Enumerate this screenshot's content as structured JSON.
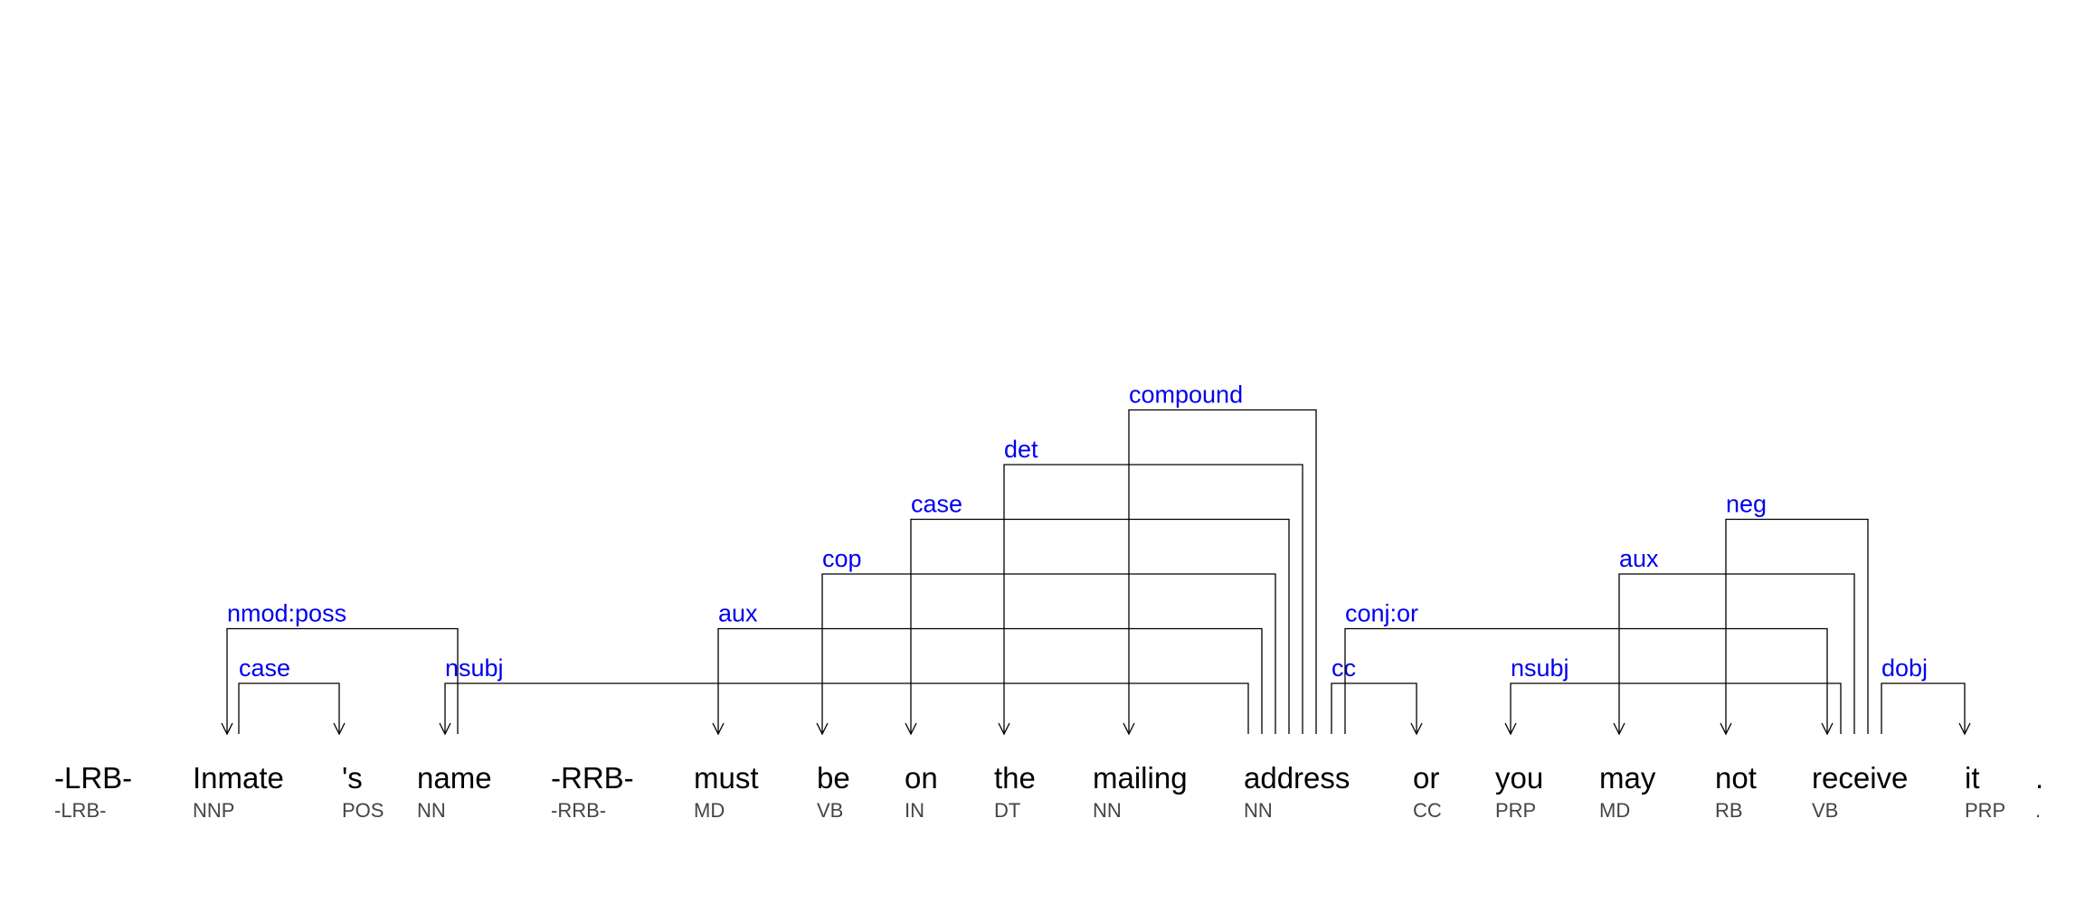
{
  "tokens": [
    {
      "word": "-LRB-",
      "tag": "-LRB-"
    },
    {
      "word": "Inmate",
      "tag": "NNP"
    },
    {
      "word": "'s",
      "tag": "POS"
    },
    {
      "word": "name",
      "tag": "NN"
    },
    {
      "word": "-RRB-",
      "tag": "-RRB-"
    },
    {
      "word": "must",
      "tag": "MD"
    },
    {
      "word": "be",
      "tag": "VB"
    },
    {
      "word": "on",
      "tag": "IN"
    },
    {
      "word": "the",
      "tag": "DT"
    },
    {
      "word": "mailing",
      "tag": "NN"
    },
    {
      "word": "address",
      "tag": "NN"
    },
    {
      "word": "or",
      "tag": "CC"
    },
    {
      "word": "you",
      "tag": "PRP"
    },
    {
      "word": "may",
      "tag": "MD"
    },
    {
      "word": "not",
      "tag": "RB"
    },
    {
      "word": "receive",
      "tag": "VB"
    },
    {
      "word": "it",
      "tag": "PRP"
    },
    {
      "word": ".",
      "tag": "."
    }
  ],
  "arcs": [
    {
      "label": "case",
      "head": 1,
      "dep": 2
    },
    {
      "label": "nmod:poss",
      "head": 3,
      "dep": 1
    },
    {
      "label": "nsubj",
      "head": 10,
      "dep": 3
    },
    {
      "label": "aux",
      "head": 10,
      "dep": 5
    },
    {
      "label": "cop",
      "head": 10,
      "dep": 6
    },
    {
      "label": "case",
      "head": 10,
      "dep": 7
    },
    {
      "label": "det",
      "head": 10,
      "dep": 8
    },
    {
      "label": "compound",
      "head": 10,
      "dep": 9
    },
    {
      "label": "cc",
      "head": 10,
      "dep": 11
    },
    {
      "label": "conj:or",
      "head": 10,
      "dep": 15
    },
    {
      "label": "nsubj",
      "head": 15,
      "dep": 12
    },
    {
      "label": "aux",
      "head": 15,
      "dep": 13
    },
    {
      "label": "neg",
      "head": 15,
      "dep": 14
    },
    {
      "label": "dobj",
      "head": 15,
      "dep": 16
    }
  ]
}
